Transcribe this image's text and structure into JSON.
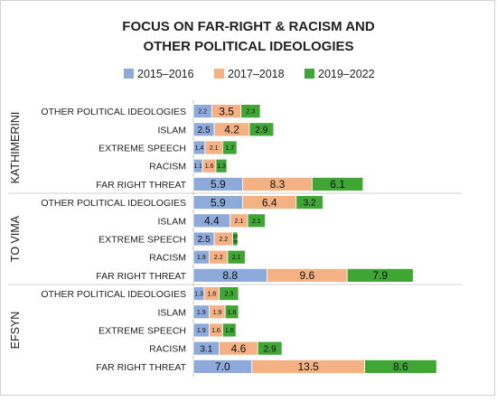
{
  "chart_data": {
    "type": "bar",
    "orientation": "horizontal",
    "stacked": true,
    "title": "FOCUS ON FAR-RIGHT & RACISM AND OTHER POLITICAL IDEOLOGIES",
    "title_lines": [
      "FOCUS ON FAR-RIGHT & RACISM AND",
      "OTHER POLITICAL IDEOLOGIES"
    ],
    "legend_position": "top",
    "grid": false,
    "xlim": [
      0,
      30
    ],
    "categories": [
      "OTHER POLITICAL IDEOLOGIES",
      "ISLAM",
      "EXTREME SPEECH",
      "RACISM",
      "FAR RIGHT THREAT"
    ],
    "groups": [
      {
        "name": "KATHIMERINI",
        "rows": [
          {
            "category": "OTHER POLITICAL IDEOLOGIES",
            "values": [
              2.2,
              3.5,
              2.3
            ]
          },
          {
            "category": "ISLAM",
            "values": [
              2.5,
              4.2,
              2.9
            ]
          },
          {
            "category": "EXTREME SPEECH",
            "values": [
              1.4,
              2.1,
              1.7
            ]
          },
          {
            "category": "RACISM",
            "values": [
              1.1,
              1.6,
              1.3
            ]
          },
          {
            "category": "FAR RIGHT THREAT",
            "values": [
              5.9,
              8.3,
              6.1
            ]
          }
        ]
      },
      {
        "name": "TO VIMA",
        "rows": [
          {
            "category": "OTHER POLITICAL IDEOLOGIES",
            "values": [
              5.9,
              6.4,
              3.2
            ]
          },
          {
            "category": "ISLAM",
            "values": [
              4.4,
              2.1,
              2.1
            ]
          },
          {
            "category": "EXTREME SPEECH",
            "values": [
              2.5,
              2.2,
              0.6
            ]
          },
          {
            "category": "RACISM",
            "values": [
              1.9,
              2.2,
              2.1
            ]
          },
          {
            "category": "FAR RIGHT THREAT",
            "values": [
              8.8,
              9.6,
              7.9
            ]
          }
        ]
      },
      {
        "name": "EFSYN",
        "rows": [
          {
            "category": "OTHER POLITICAL IDEOLOGIES",
            "values": [
              1.3,
              1.8,
              2.3
            ]
          },
          {
            "category": "ISLAM",
            "values": [
              1.9,
              1.9,
              1.6
            ]
          },
          {
            "category": "EXTREME SPEECH",
            "values": [
              1.9,
              1.6,
              1.6
            ]
          },
          {
            "category": "RACISM",
            "values": [
              3.1,
              4.6,
              2.9
            ]
          },
          {
            "category": "FAR RIGHT THREAT",
            "values": [
              7.0,
              13.5,
              8.6
            ]
          }
        ]
      }
    ],
    "series": [
      {
        "name": "2015–2016",
        "color": "#8eaadb"
      },
      {
        "name": "2017–2018",
        "color": "#f4b183"
      },
      {
        "name": "2019–2022",
        "color": "#3fa535"
      }
    ]
  }
}
